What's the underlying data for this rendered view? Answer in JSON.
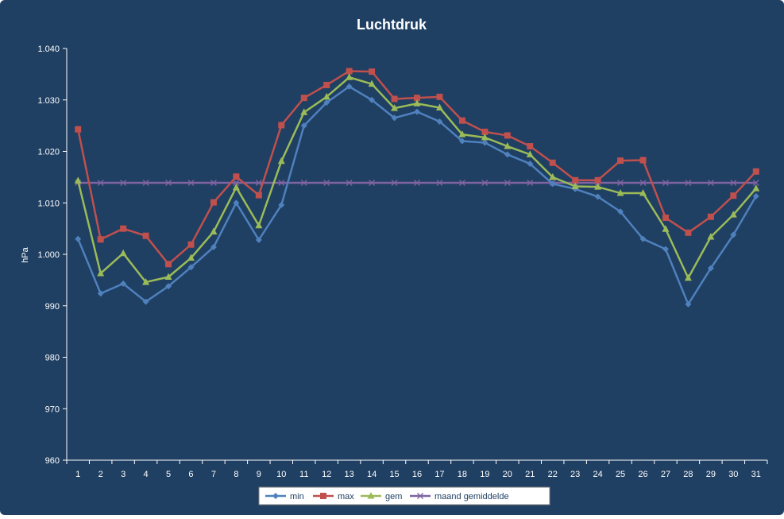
{
  "chart_data": {
    "type": "line",
    "title": "Luchtdruk",
    "ylabel": "hPa",
    "xlabel": "",
    "ylim": [
      960,
      1040
    ],
    "y_ticks": [
      "960",
      "970",
      "980",
      "990",
      "1.000",
      "1.010",
      "1.020",
      "1.030",
      "1.040"
    ],
    "categories": [
      "1",
      "2",
      "3",
      "4",
      "5",
      "6",
      "7",
      "8",
      "9",
      "10",
      "11",
      "12",
      "13",
      "14",
      "15",
      "16",
      "17",
      "18",
      "19",
      "20",
      "21",
      "22",
      "23",
      "24",
      "25",
      "26",
      "27",
      "28",
      "29",
      "30",
      "31"
    ],
    "legend_position": "bottom",
    "series": [
      {
        "name": "min",
        "color": "#4f81bd",
        "marker": "diamond",
        "values": [
          1003.0,
          992.4,
          994.3,
          990.8,
          993.8,
          997.5,
          1001.4,
          1010.0,
          1002.8,
          1009.6,
          1025.0,
          1029.5,
          1032.6,
          1030.0,
          1026.5,
          1027.7,
          1025.8,
          1022.0,
          1021.7,
          1019.4,
          1017.6,
          1013.7,
          1012.7,
          1011.2,
          1008.3,
          1003.0,
          1001.0,
          990.3,
          997.3,
          1003.8,
          1011.3
        ]
      },
      {
        "name": "max",
        "color": "#c0504d",
        "marker": "square",
        "values": [
          1024.3,
          1002.9,
          1005.0,
          1003.6,
          998.1,
          1001.9,
          1010.1,
          1015.1,
          1011.5,
          1025.1,
          1030.4,
          1032.9,
          1035.6,
          1035.5,
          1030.2,
          1030.4,
          1030.6,
          1026.0,
          1023.8,
          1023.1,
          1021.0,
          1017.8,
          1014.4,
          1014.4,
          1018.2,
          1018.3,
          1007.1,
          1004.2,
          1007.3,
          1011.4,
          1016.1
        ]
      },
      {
        "name": "gem",
        "color": "#9bbb59",
        "marker": "triangle",
        "values": [
          1014.3,
          996.3,
          1000.2,
          994.6,
          995.6,
          999.3,
          1004.4,
          1013.0,
          1005.6,
          1018.1,
          1027.6,
          1030.6,
          1034.4,
          1033.1,
          1028.4,
          1029.3,
          1028.5,
          1023.3,
          1022.7,
          1021.0,
          1019.4,
          1015.0,
          1013.2,
          1013.1,
          1011.9,
          1011.9,
          1004.9,
          995.4,
          1003.4,
          1007.7,
          1012.8
        ]
      },
      {
        "name": "maand gemiddelde",
        "color": "#8064a2",
        "marker": "x",
        "values": [
          1013.9,
          1013.9,
          1013.9,
          1013.9,
          1013.9,
          1013.9,
          1013.9,
          1013.9,
          1013.9,
          1013.9,
          1013.9,
          1013.9,
          1013.9,
          1013.9,
          1013.9,
          1013.9,
          1013.9,
          1013.9,
          1013.9,
          1013.9,
          1013.9,
          1013.9,
          1013.9,
          1013.9,
          1013.9,
          1013.9,
          1013.9,
          1013.9,
          1013.9,
          1013.9,
          1013.9
        ]
      }
    ]
  },
  "colors": {
    "background": "#1f3f63",
    "axis": "#ffffff",
    "legend_background": "#ffffff",
    "legend_text": "#1f3f63"
  }
}
